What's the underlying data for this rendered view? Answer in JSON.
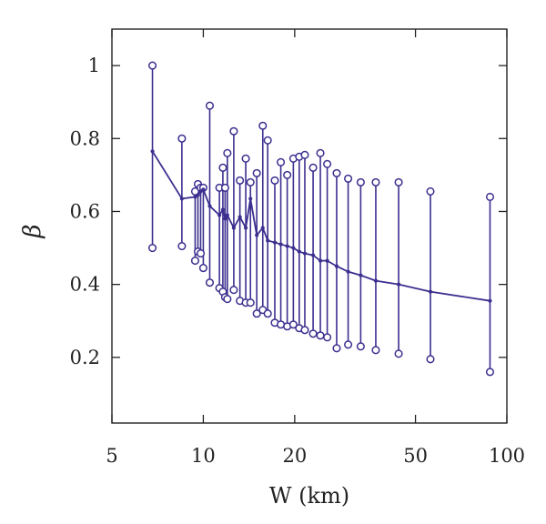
{
  "chart_data": {
    "type": "line",
    "xscale": "log",
    "xlabel": "W (km)",
    "ylabel": "β",
    "xlim": [
      5,
      100
    ],
    "ylim": [
      0.02,
      1.1
    ],
    "x_ticks": [
      5,
      10,
      20,
      50,
      100
    ],
    "x_tick_labels": [
      "5",
      "10",
      "20",
      "50",
      "100"
    ],
    "y_ticks": [
      0.2,
      0.4,
      0.6,
      0.8,
      1.0
    ],
    "y_tick_labels": [
      "0.2",
      "0.4",
      "0.6",
      "0.8",
      "1"
    ],
    "grid": false,
    "color": "#3b2f8f",
    "series": [
      {
        "x": [
          6.8,
          8.5,
          9.4,
          9.6,
          9.8,
          10.0,
          10.5,
          11.3,
          11.6,
          11.8,
          12.0,
          12.6,
          13.2,
          13.8,
          14.3,
          15.0,
          15.7,
          16.3,
          17.2,
          18.0,
          18.9,
          19.8,
          20.7,
          21.6,
          23.0,
          24.3,
          25.6,
          27.5,
          30.0,
          33.0,
          37.0,
          44.0,
          56.0,
          88.0
        ],
        "mean": [
          0.765,
          0.635,
          0.64,
          0.645,
          0.655,
          0.66,
          0.615,
          0.59,
          0.605,
          0.58,
          0.59,
          0.555,
          0.585,
          0.555,
          0.635,
          0.535,
          0.555,
          0.52,
          0.515,
          0.51,
          0.505,
          0.5,
          0.49,
          0.485,
          0.48,
          0.465,
          0.465,
          0.45,
          0.435,
          0.425,
          0.41,
          0.4,
          0.38,
          0.355
        ],
        "max": [
          1.0,
          0.8,
          0.655,
          0.675,
          0.665,
          0.665,
          0.89,
          0.665,
          0.72,
          0.665,
          0.76,
          0.82,
          0.685,
          0.745,
          0.68,
          0.705,
          0.835,
          0.795,
          0.685,
          0.735,
          0.7,
          0.745,
          0.75,
          0.755,
          0.72,
          0.76,
          0.73,
          0.705,
          0.69,
          0.68,
          0.68,
          0.68,
          0.655,
          0.64
        ],
        "min": [
          0.5,
          0.505,
          0.465,
          0.49,
          0.485,
          0.445,
          0.405,
          0.39,
          0.38,
          0.365,
          0.36,
          0.385,
          0.355,
          0.35,
          0.35,
          0.32,
          0.33,
          0.32,
          0.295,
          0.29,
          0.285,
          0.29,
          0.28,
          0.275,
          0.265,
          0.26,
          0.255,
          0.225,
          0.235,
          0.23,
          0.22,
          0.21,
          0.195,
          0.16
        ]
      }
    ]
  }
}
